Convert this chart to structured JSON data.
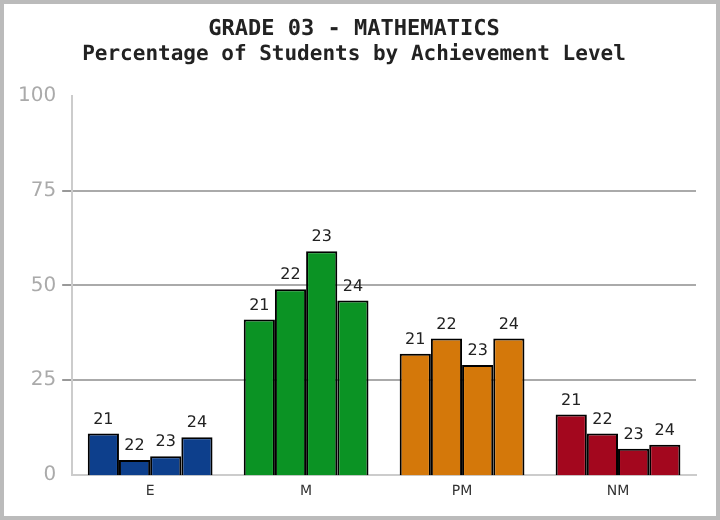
{
  "chart_data": {
    "type": "bar",
    "title": "GRADE 03 - MATHEMATICS",
    "subtitle": "Percentage of Students by Achievement Level",
    "categories": [
      "E",
      "M",
      "PM",
      "NM"
    ],
    "series": [
      {
        "name": "21",
        "colors": [
          "#0d3f8c",
          "#0b9324",
          "#d4780a",
          "#a3071e"
        ],
        "values": [
          11,
          41,
          32,
          16
        ]
      },
      {
        "name": "22",
        "colors": [
          "#0d3f8c",
          "#0b9324",
          "#d4780a",
          "#a3071e"
        ],
        "values": [
          4,
          49,
          36,
          11
        ]
      },
      {
        "name": "23",
        "colors": [
          "#0d3f8c",
          "#0b9324",
          "#d4780a",
          "#a3071e"
        ],
        "values": [
          5,
          59,
          29,
          7
        ]
      },
      {
        "name": "24",
        "colors": [
          "#0d3f8c",
          "#0b9324",
          "#d4780a",
          "#a3071e"
        ],
        "values": [
          10,
          46,
          36,
          8
        ]
      }
    ],
    "ylim": [
      0,
      100
    ],
    "yticks": [
      0,
      25,
      50,
      75,
      100
    ],
    "grid": "y",
    "legend": false
  }
}
